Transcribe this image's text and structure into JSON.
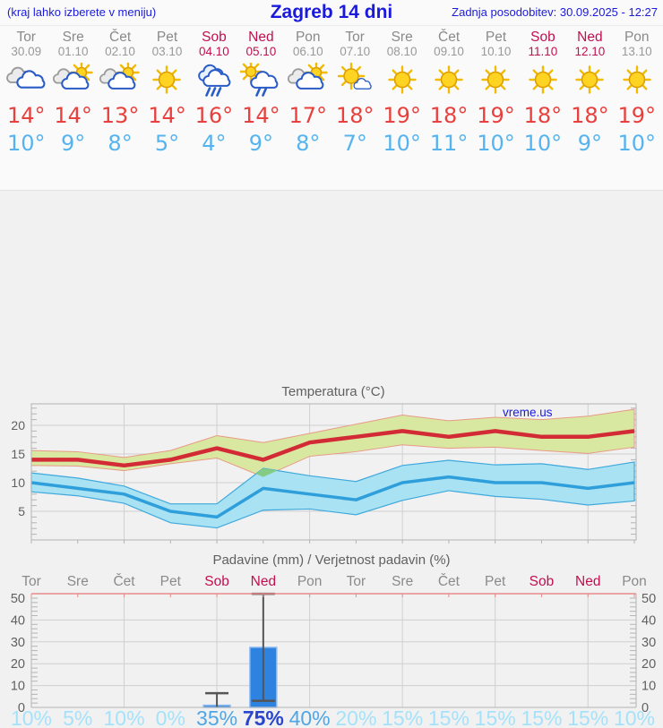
{
  "header": {
    "hint": "(kraj lahko izberete v meniju)",
    "title": "Zagreb 14 dni",
    "updated": "Zadnja posodobitev: 30.09.2025 - 12:27"
  },
  "days": [
    {
      "name": "Tor",
      "date": "30.09",
      "weekend": false,
      "icon": "cloudy",
      "tmax": "14°",
      "tmin": "10°"
    },
    {
      "name": "Sre",
      "date": "01.10",
      "weekend": false,
      "icon": "partly-cloudy",
      "tmax": "14°",
      "tmin": "9°"
    },
    {
      "name": "Čet",
      "date": "02.10",
      "weekend": false,
      "icon": "partly-cloudy",
      "tmax": "13°",
      "tmin": "8°"
    },
    {
      "name": "Pet",
      "date": "03.10",
      "weekend": false,
      "icon": "sunny",
      "tmax": "14°",
      "tmin": "5°"
    },
    {
      "name": "Sob",
      "date": "04.10",
      "weekend": true,
      "icon": "rain",
      "tmax": "16°",
      "tmin": "4°"
    },
    {
      "name": "Ned",
      "date": "05.10",
      "weekend": true,
      "icon": "sun-rain",
      "tmax": "14°",
      "tmin": "9°"
    },
    {
      "name": "Pon",
      "date": "06.10",
      "weekend": false,
      "icon": "partly-cloudy",
      "tmax": "17°",
      "tmin": "8°"
    },
    {
      "name": "Tor",
      "date": "07.10",
      "weekend": false,
      "icon": "mostly-sunny",
      "tmax": "18°",
      "tmin": "7°"
    },
    {
      "name": "Sre",
      "date": "08.10",
      "weekend": false,
      "icon": "sunny",
      "tmax": "19°",
      "tmin": "10°"
    },
    {
      "name": "Čet",
      "date": "09.10",
      "weekend": false,
      "icon": "sunny",
      "tmax": "18°",
      "tmin": "11°"
    },
    {
      "name": "Pet",
      "date": "10.10",
      "weekend": false,
      "icon": "sunny",
      "tmax": "19°",
      "tmin": "10°"
    },
    {
      "name": "Sob",
      "date": "11.10",
      "weekend": true,
      "icon": "sunny",
      "tmax": "18°",
      "tmin": "10°"
    },
    {
      "name": "Ned",
      "date": "12.10",
      "weekend": true,
      "icon": "sunny",
      "tmax": "18°",
      "tmin": "9°"
    },
    {
      "name": "Pon",
      "date": "13.10",
      "weekend": false,
      "icon": "sunny",
      "tmax": "19°",
      "tmin": "10°"
    }
  ],
  "chart_data": [
    {
      "type": "line",
      "title": "Temperatura (°C)",
      "watermark": "vreme.us",
      "categories": [
        "Tor",
        "Sre",
        "Čet",
        "Pet",
        "Sob",
        "Ned",
        "Pon",
        "Tor",
        "Sre",
        "Čet",
        "Pet",
        "Sob",
        "Ned",
        "Pon"
      ],
      "y_ticks": [
        5,
        10,
        15,
        20
      ],
      "ylim": [
        0,
        23.7
      ],
      "grid": true,
      "series": [
        {
          "name": "tmax",
          "color": "#d22b35",
          "values": [
            14,
            14,
            13,
            14,
            16,
            14,
            17,
            18,
            19,
            18,
            19,
            18,
            18,
            19
          ]
        },
        {
          "name": "tmax_range_upper",
          "values": [
            15.6,
            15.4,
            14.4,
            15.6,
            18.2,
            17.0,
            18.6,
            20.2,
            21.8,
            20.8,
            21.4,
            21.0,
            21.6,
            22.8
          ]
        },
        {
          "name": "tmax_range_lower",
          "values": [
            13.0,
            12.9,
            12.1,
            13.3,
            14.3,
            11.0,
            14.6,
            15.4,
            16.6,
            16.0,
            16.2,
            15.6,
            15.1,
            16.2
          ]
        },
        {
          "name": "tmin",
          "color": "#2f9fdc",
          "values": [
            10,
            9,
            8,
            5,
            4,
            9,
            8,
            7,
            10,
            11,
            10,
            10,
            9,
            10
          ]
        },
        {
          "name": "tmin_range_upper",
          "values": [
            11.7,
            10.8,
            9.4,
            6.3,
            6.3,
            12.5,
            11.2,
            10.2,
            13.0,
            13.9,
            13.1,
            13.3,
            12.3,
            13.6
          ]
        },
        {
          "name": "tmin_range_lower",
          "values": [
            8.4,
            7.7,
            6.4,
            3.0,
            2.1,
            5.2,
            5.4,
            4.4,
            6.9,
            8.6,
            7.6,
            7.1,
            6.1,
            6.8
          ]
        }
      ]
    },
    {
      "type": "bar",
      "title": "Padavine (mm) / Verjetnost padavin (%)",
      "categories": [
        "Tor",
        "Sre",
        "Čet",
        "Pet",
        "Sob",
        "Ned",
        "Pon",
        "Tor",
        "Sre",
        "Čet",
        "Pet",
        "Sob",
        "Ned",
        "Pon"
      ],
      "y_ticks": [
        0,
        10,
        20,
        30,
        40,
        50
      ],
      "ylim": [
        0,
        50
      ],
      "grid": true,
      "values": [
        0,
        0,
        0,
        0,
        1,
        27.5,
        0,
        0,
        0,
        0,
        0,
        0,
        0,
        0
      ],
      "whiskers": [
        null,
        null,
        null,
        null,
        {
          "low": 0,
          "high": 6.5
        },
        {
          "low": 3,
          "high": 52
        },
        null,
        null,
        null,
        null,
        null,
        null,
        null,
        null
      ],
      "probabilities": [
        "10%",
        "5%",
        "10%",
        "0%",
        "35%",
        "75%",
        "40%",
        "20%",
        "15%",
        "15%",
        "15%",
        "15%",
        "15%",
        "10%"
      ]
    }
  ],
  "colors": {
    "link_blue": "#1a1add",
    "weekday_gray": "#8a8a8a",
    "date_gray": "#999999",
    "weekend_crimson": "#c01050",
    "tmax_red": "#e8403d",
    "tmin_blue": "#55b4f0",
    "band_green": "#d9e8a0",
    "band_green_edge": "#e89a86",
    "band_overlap_green": "#84cc84",
    "band_cyan": "#a9e2f3",
    "band_cyan_edge": "#3fa8dc",
    "bar_blue": "#2e82e0",
    "bar_edge": "#90bcf0",
    "whisker_gray": "#555555",
    "prob_low": "#a5e2fa",
    "prob_mid": "#4fa6e6",
    "prob_high": "#2a46cc",
    "chart_text": "#606060",
    "grid": "#d0d0d0",
    "frame": "#b4b4b4",
    "precip_top_pink": "#e88a8a"
  },
  "icon_colors": {
    "sun": "#ffd321",
    "sun_stroke": "#dd9f00",
    "ray": "#f2bb00",
    "cloud_white": "#ffffff",
    "cloud_blue": "#2a5cc8",
    "cloud_gray": "#ebebeb",
    "cloud_gray_stroke": "#9a9a9a",
    "cloud_rain_back": "#e8f1fc",
    "rain_blue": "#2a5cc8"
  }
}
